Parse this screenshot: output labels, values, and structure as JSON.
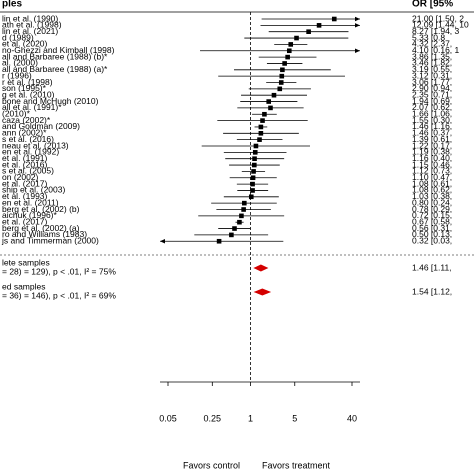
{
  "chart_data": {
    "type": "forest",
    "header_left": "ples",
    "header_right": "OR [95%",
    "xlim": [
      0.05,
      40
    ],
    "xticks": [
      0.05,
      0.25,
      1,
      5,
      40
    ],
    "log_x": true,
    "reference": 1,
    "color": "#000000",
    "summary_color": "#d40000",
    "favor_left": "Favors control",
    "favor_right": "Favors treatment",
    "studies": {
      "labels": [
        "lin et al. (1990)",
        "ath et al. (1998)",
        "lin et al. (2021)",
        "d (1989)",
        "et al. (2020)",
        "no-Ghezzi and Kimball (1998)",
        "all and Barbaree (1988) (b)*",
        "al. (2000)",
        "all and Barbaree (1988) (a)*",
        "r (1996)",
        "r et al. (1998)",
        "son (1995)*",
        "g et al. (2010)",
        "bone and McHugh (2010)",
        "all et al. (1991)*",
        "(2010)*",
        "caza (2002)*",
        "and Goldman (2009)",
        "ann (2002)*",
        "s et al. (2016)",
        "neau et al. (2013)",
        "en et al. (1992)",
        "et al. (1991)",
        "et al. (2016)",
        "s et al. (2005)",
        "on (2002)",
        "et al. (2017)",
        "ship et al. (2003)",
        "et al. (1993)",
        "en et al. (2011)",
        "berg et al. (2002) (b)",
        "aichuk (1996)*",
        "et al. (2017)",
        "berg et al. (2002) (a)",
        "ro and Williams (1983)",
        "js and Timmerman (2000)"
      ],
      "values": [
        21.0,
        12.09,
        8.27,
        5.33,
        4.32,
        4.1,
        3.86,
        3.46,
        3.19,
        3.12,
        3.06,
        2.9,
        2.35,
        1.94,
        2.07,
        1.66,
        1.55,
        1.46,
        1.46,
        1.39,
        1.22,
        1.19,
        1.16,
        1.15,
        1.12,
        1.1,
        1.08,
        1.08,
        1.03,
        0.8,
        0.78,
        0.72,
        0.67,
        0.56,
        0.5,
        0.32
      ],
      "lower": [
        1.5,
        1.44,
        1.94,
        0.8,
        2.37,
        0.16,
        1.35,
        1.82,
        0.55,
        0.31,
        1.77,
        0.94,
        0.71,
        0.69,
        0.62,
        1.06,
        0.3,
        1.16,
        0.37,
        0.61,
        0.17,
        0.38,
        0.4,
        0.46,
        0.73,
        0.47,
        0.61,
        0.62,
        0.38,
        0.24,
        0.29,
        0.15,
        0.58,
        0.31,
        0.13,
        0.03
      ],
      "upper": [
        294,
        101.5,
        35.2,
        35,
        7.9,
        104,
        11,
        6.6,
        18.5,
        31,
        5.3,
        9,
        7.8,
        5.5,
        6.9,
        2.6,
        8.0,
        1.84,
        5.8,
        3.2,
        8.7,
        3.7,
        3.4,
        2.9,
        1.7,
        2.6,
        1.9,
        1.9,
        2.8,
        2.6,
        2.1,
        3.4,
        0.78,
        1.0,
        1.9,
        3.3
      ],
      "value_labels": [
        "21.00 [1.50, 2",
        "12.09 [1.44, 10",
        "8.27 [1.94, 3",
        "5.33 [0.8",
        "4.32 [2.37,",
        "4.10 [0.16, 1",
        "3.86 [1.35,",
        "3.46 [1.82,",
        "3.19 [0.55,",
        "3.12 [0.31,",
        "3.06 [1.77,",
        "2.90 [0.94,",
        "2.35 [0.71,",
        "1.94 [0.69,",
        "2.07 [0.62,",
        "1.66 [1.06,",
        "1.55 [0.30,",
        "1.46 [1.16,",
        "1.46 [0.37,",
        "1.39 [0.61,",
        "1.22 [0.17,",
        "1.19 [0.38,",
        "1.16 [0.40,",
        "1.15 [0.46,",
        "1.12 [0.73,",
        "1.10 [0.47,",
        "1.08 [0.61,",
        "1.08 [0.62,",
        "1.03 [0.38,",
        "0.80 [0.24,",
        "0.78 [0.29,",
        "0.72 [0.15,",
        "0.67 [0.58,",
        "0.56 [0.31,",
        "0.50 [0.13,",
        "0.32 [0.03,"
      ]
    },
    "summaries": {
      "titles": [
        "lete samples",
        "ed samples"
      ],
      "stats": [
        "= 28) = 129), p < .01, I² = 75%",
        "= 36) = 146), p < .01, I² = 69%"
      ],
      "values": [
        1.46,
        1.54
      ],
      "lower": [
        1.11,
        1.12
      ],
      "upper": [
        1.92,
        2.12
      ],
      "value_labels": [
        "1.46 [1.11,",
        "1.54 [1.12,"
      ]
    }
  }
}
